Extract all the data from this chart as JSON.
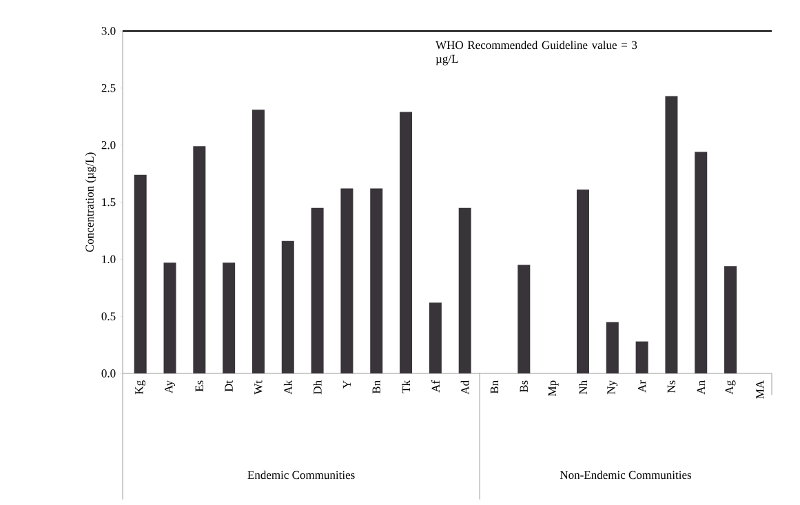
{
  "chart_data": {
    "type": "bar",
    "ylabel": "Concentration (µg/L)",
    "categories": [
      "Kg",
      "Ay",
      "Es",
      "Dt",
      "Wt",
      "Ak",
      "Dh",
      "Y",
      "Bn",
      "Tk",
      "Af",
      "Ad",
      "Bn",
      "Bs",
      "Mp",
      "Nh",
      "Ny",
      "Ar",
      "Ns",
      "An",
      "Ag",
      "MA"
    ],
    "values": [
      1.74,
      0.97,
      1.99,
      0.97,
      2.31,
      1.16,
      1.45,
      1.62,
      1.62,
      2.29,
      0.62,
      1.45,
      null,
      0.95,
      null,
      1.61,
      0.45,
      0.28,
      2.43,
      1.94,
      0.94,
      null
    ],
    "color": "#38343a",
    "ylim": [
      0,
      3
    ],
    "yticks": [
      {
        "value": 0,
        "label": "0.0"
      },
      {
        "value": 0.5,
        "label": "0.5"
      },
      {
        "value": 1,
        "label": "1.0"
      },
      {
        "value": 1.5,
        "label": "1.5"
      },
      {
        "value": 2,
        "label": "2.0"
      },
      {
        "value": 2.5,
        "label": "2.5"
      },
      {
        "value": 3,
        "label": "3.0"
      }
    ],
    "ref_lines": [
      {
        "axis": "y",
        "value": 3,
        "label": "WHO Recommended Guideline value = 3 µg/L",
        "color": "#000000"
      }
    ],
    "annotations": [
      "Endemic Communities",
      "Non-Endemic Communities"
    ],
    "grid": false
  }
}
